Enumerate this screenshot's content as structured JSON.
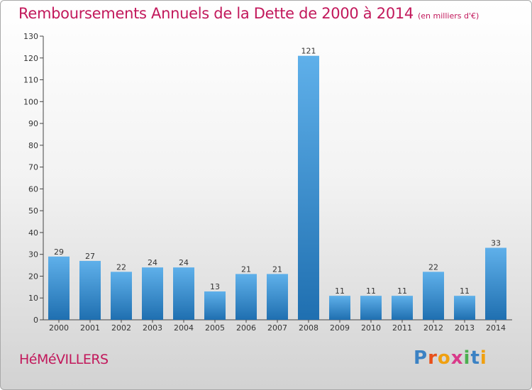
{
  "chart_data": {
    "type": "bar",
    "title": "Remboursements Annuels de la Dette de 2000 à 2014",
    "subtitle": "(en milliers d'€)",
    "categories": [
      "2000",
      "2001",
      "2002",
      "2003",
      "2004",
      "2005",
      "2006",
      "2007",
      "2008",
      "2009",
      "2010",
      "2011",
      "2012",
      "2013",
      "2014"
    ],
    "values": [
      29,
      27,
      22,
      24,
      24,
      13,
      21,
      21,
      121,
      11,
      11,
      11,
      22,
      11,
      33
    ],
    "data_labels": [
      "29",
      "27",
      "22",
      "24",
      "24",
      "13",
      "21",
      "21",
      "121",
      "11",
      "11",
      "11",
      "22",
      "11",
      "33"
    ],
    "yticks": [
      "0",
      "10",
      "20",
      "30",
      "40",
      "50",
      "60",
      "70",
      "80",
      "90",
      "100",
      "110",
      "120",
      "130"
    ],
    "ylim": [
      0,
      130
    ],
    "grid": false,
    "bar_color": "#3a8fd6"
  },
  "footer": {
    "city": "HéMéVILLERS",
    "logo": [
      "P",
      "r",
      "o",
      "x",
      "i",
      "t",
      "i"
    ],
    "logo_colors": [
      "#3b82c4",
      "#e8501a",
      "#f0a010",
      "#d93a8a",
      "#4caf50",
      "#3b82c4",
      "#f0a010"
    ]
  }
}
